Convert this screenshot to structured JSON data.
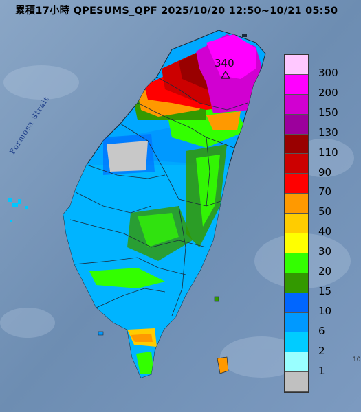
{
  "title": "累積17小時 QPESUMS_QPF 2025/10/20 12:50~10/21 05:50",
  "map": {
    "sea_label": "Formosa Strait",
    "max_value_label": "340",
    "max_marker_icon": "triangle-icon"
  },
  "legend": {
    "items": [
      {
        "label": "300",
        "color": "#ffc8ff"
      },
      {
        "label": "200",
        "color": "#ff00ff"
      },
      {
        "label": "150",
        "color": "#d100d1"
      },
      {
        "label": "130",
        "color": "#9c009c"
      },
      {
        "label": "110",
        "color": "#990000"
      },
      {
        "label": "90",
        "color": "#cc0000"
      },
      {
        "label": "70",
        "color": "#ff0000"
      },
      {
        "label": "50",
        "color": "#ff9900"
      },
      {
        "label": "40",
        "color": "#ffcc00"
      },
      {
        "label": "30",
        "color": "#ffff00"
      },
      {
        "label": "20",
        "color": "#33ff00"
      },
      {
        "label": "15",
        "color": "#339900"
      },
      {
        "label": "10",
        "color": "#0066ff"
      },
      {
        "label": "6",
        "color": "#0099ff"
      },
      {
        "label": "2",
        "color": "#00ccff"
      },
      {
        "label": "1",
        "color": "#99ffff"
      },
      {
        "label": "",
        "color": "#c0c0c0"
      }
    ]
  },
  "colors": {
    "sea": "#7090b4",
    "land_base": "#00a8ff",
    "rain_high": "#d100d1"
  }
}
